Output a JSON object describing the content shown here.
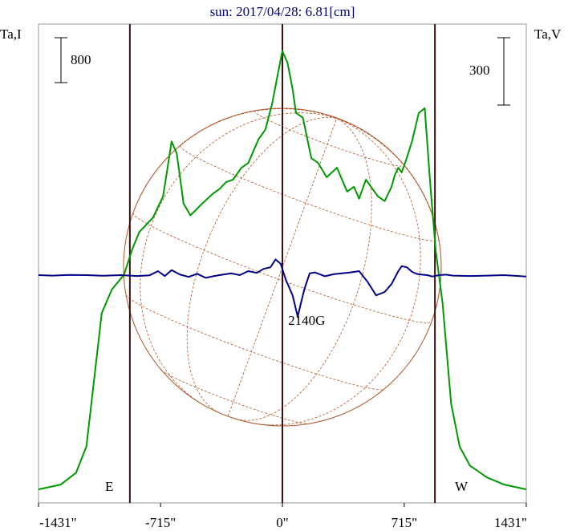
{
  "chart_data": {
    "type": "line",
    "title": "sun: 2017/04/28: 6.81[cm]",
    "left_axis_label": "Ta,I",
    "right_axis_label": "Ta,V",
    "left_scale_bar_label": "800",
    "right_scale_bar_label": "300",
    "x_tick_labels": [
      "-1431\"",
      "-715\"",
      "0\"",
      "715\"",
      "1431\""
    ],
    "x_tick_values": [
      -1431,
      -715,
      0,
      715,
      1431
    ],
    "xlim": [
      -1431,
      1431
    ],
    "east_label": "E",
    "west_label": "W",
    "annotation": "2140G",
    "annotation_x": 100,
    "limb_positions": [
      -895,
      0,
      895
    ],
    "series": [
      {
        "color": "#009900",
        "x": [
          -1431,
          -1300,
          -1210,
          -1150,
          -1105,
          -1060,
          -1000,
          -930,
          -880,
          -840,
          -760,
          -700,
          -650,
          -620,
          -580,
          -540,
          -470,
          -410,
          -370,
          -330,
          -290,
          -240,
          -200,
          -140,
          -100,
          -60,
          -20,
          0,
          30,
          60,
          80,
          120,
          170,
          210,
          260,
          320,
          380,
          420,
          450,
          490,
          560,
          600,
          640,
          660,
          680,
          700,
          725,
          760,
          800,
          835,
          870,
          900,
          940,
          990,
          1040,
          1100,
          1200,
          1300,
          1431
        ],
        "y": [
          0.02,
          0.04,
          0.09,
          0.2,
          0.48,
          0.76,
          0.86,
          0.92,
          1.03,
          1.1,
          1.16,
          1.25,
          1.48,
          1.43,
          1.22,
          1.17,
          1.22,
          1.26,
          1.28,
          1.31,
          1.32,
          1.37,
          1.39,
          1.49,
          1.53,
          1.64,
          1.79,
          1.86,
          1.81,
          1.7,
          1.6,
          1.58,
          1.41,
          1.39,
          1.33,
          1.37,
          1.27,
          1.29,
          1.24,
          1.32,
          1.25,
          1.23,
          1.29,
          1.34,
          1.37,
          1.35,
          1.4,
          1.48,
          1.6,
          1.62,
          1.28,
          1.02,
          0.8,
          0.38,
          0.2,
          0.12,
          0.07,
          0.04,
          0.02
        ]
      },
      {
        "color": "#000088",
        "x": [
          -1431,
          -1350,
          -1250,
          -1150,
          -1050,
          -950,
          -850,
          -780,
          -730,
          -690,
          -650,
          -600,
          -550,
          -500,
          -450,
          -400,
          -350,
          -300,
          -250,
          -200,
          -150,
          -110,
          -70,
          -40,
          -10,
          20,
          60,
          90,
          110,
          130,
          160,
          190,
          250,
          300,
          350,
          400,
          450,
          500,
          550,
          600,
          640,
          680,
          700,
          730,
          760,
          790,
          820,
          850,
          880,
          920,
          960,
          1000,
          1100,
          1200,
          1300,
          1431
        ],
        "y": [
          0,
          -2,
          1,
          0,
          -3,
          0,
          -4,
          -1,
          18,
          -4,
          22,
          2,
          -8,
          6,
          -12,
          -4,
          2,
          8,
          0,
          18,
          10,
          28,
          35,
          70,
          50,
          -20,
          -90,
          -185,
          -120,
          -60,
          8,
          12,
          -5,
          4,
          8,
          12,
          18,
          -30,
          -90,
          -75,
          -40,
          18,
          40,
          35,
          15,
          5,
          2,
          0,
          -6,
          0,
          2,
          -2,
          -4,
          -2,
          0,
          -6
        ]
      }
    ]
  }
}
